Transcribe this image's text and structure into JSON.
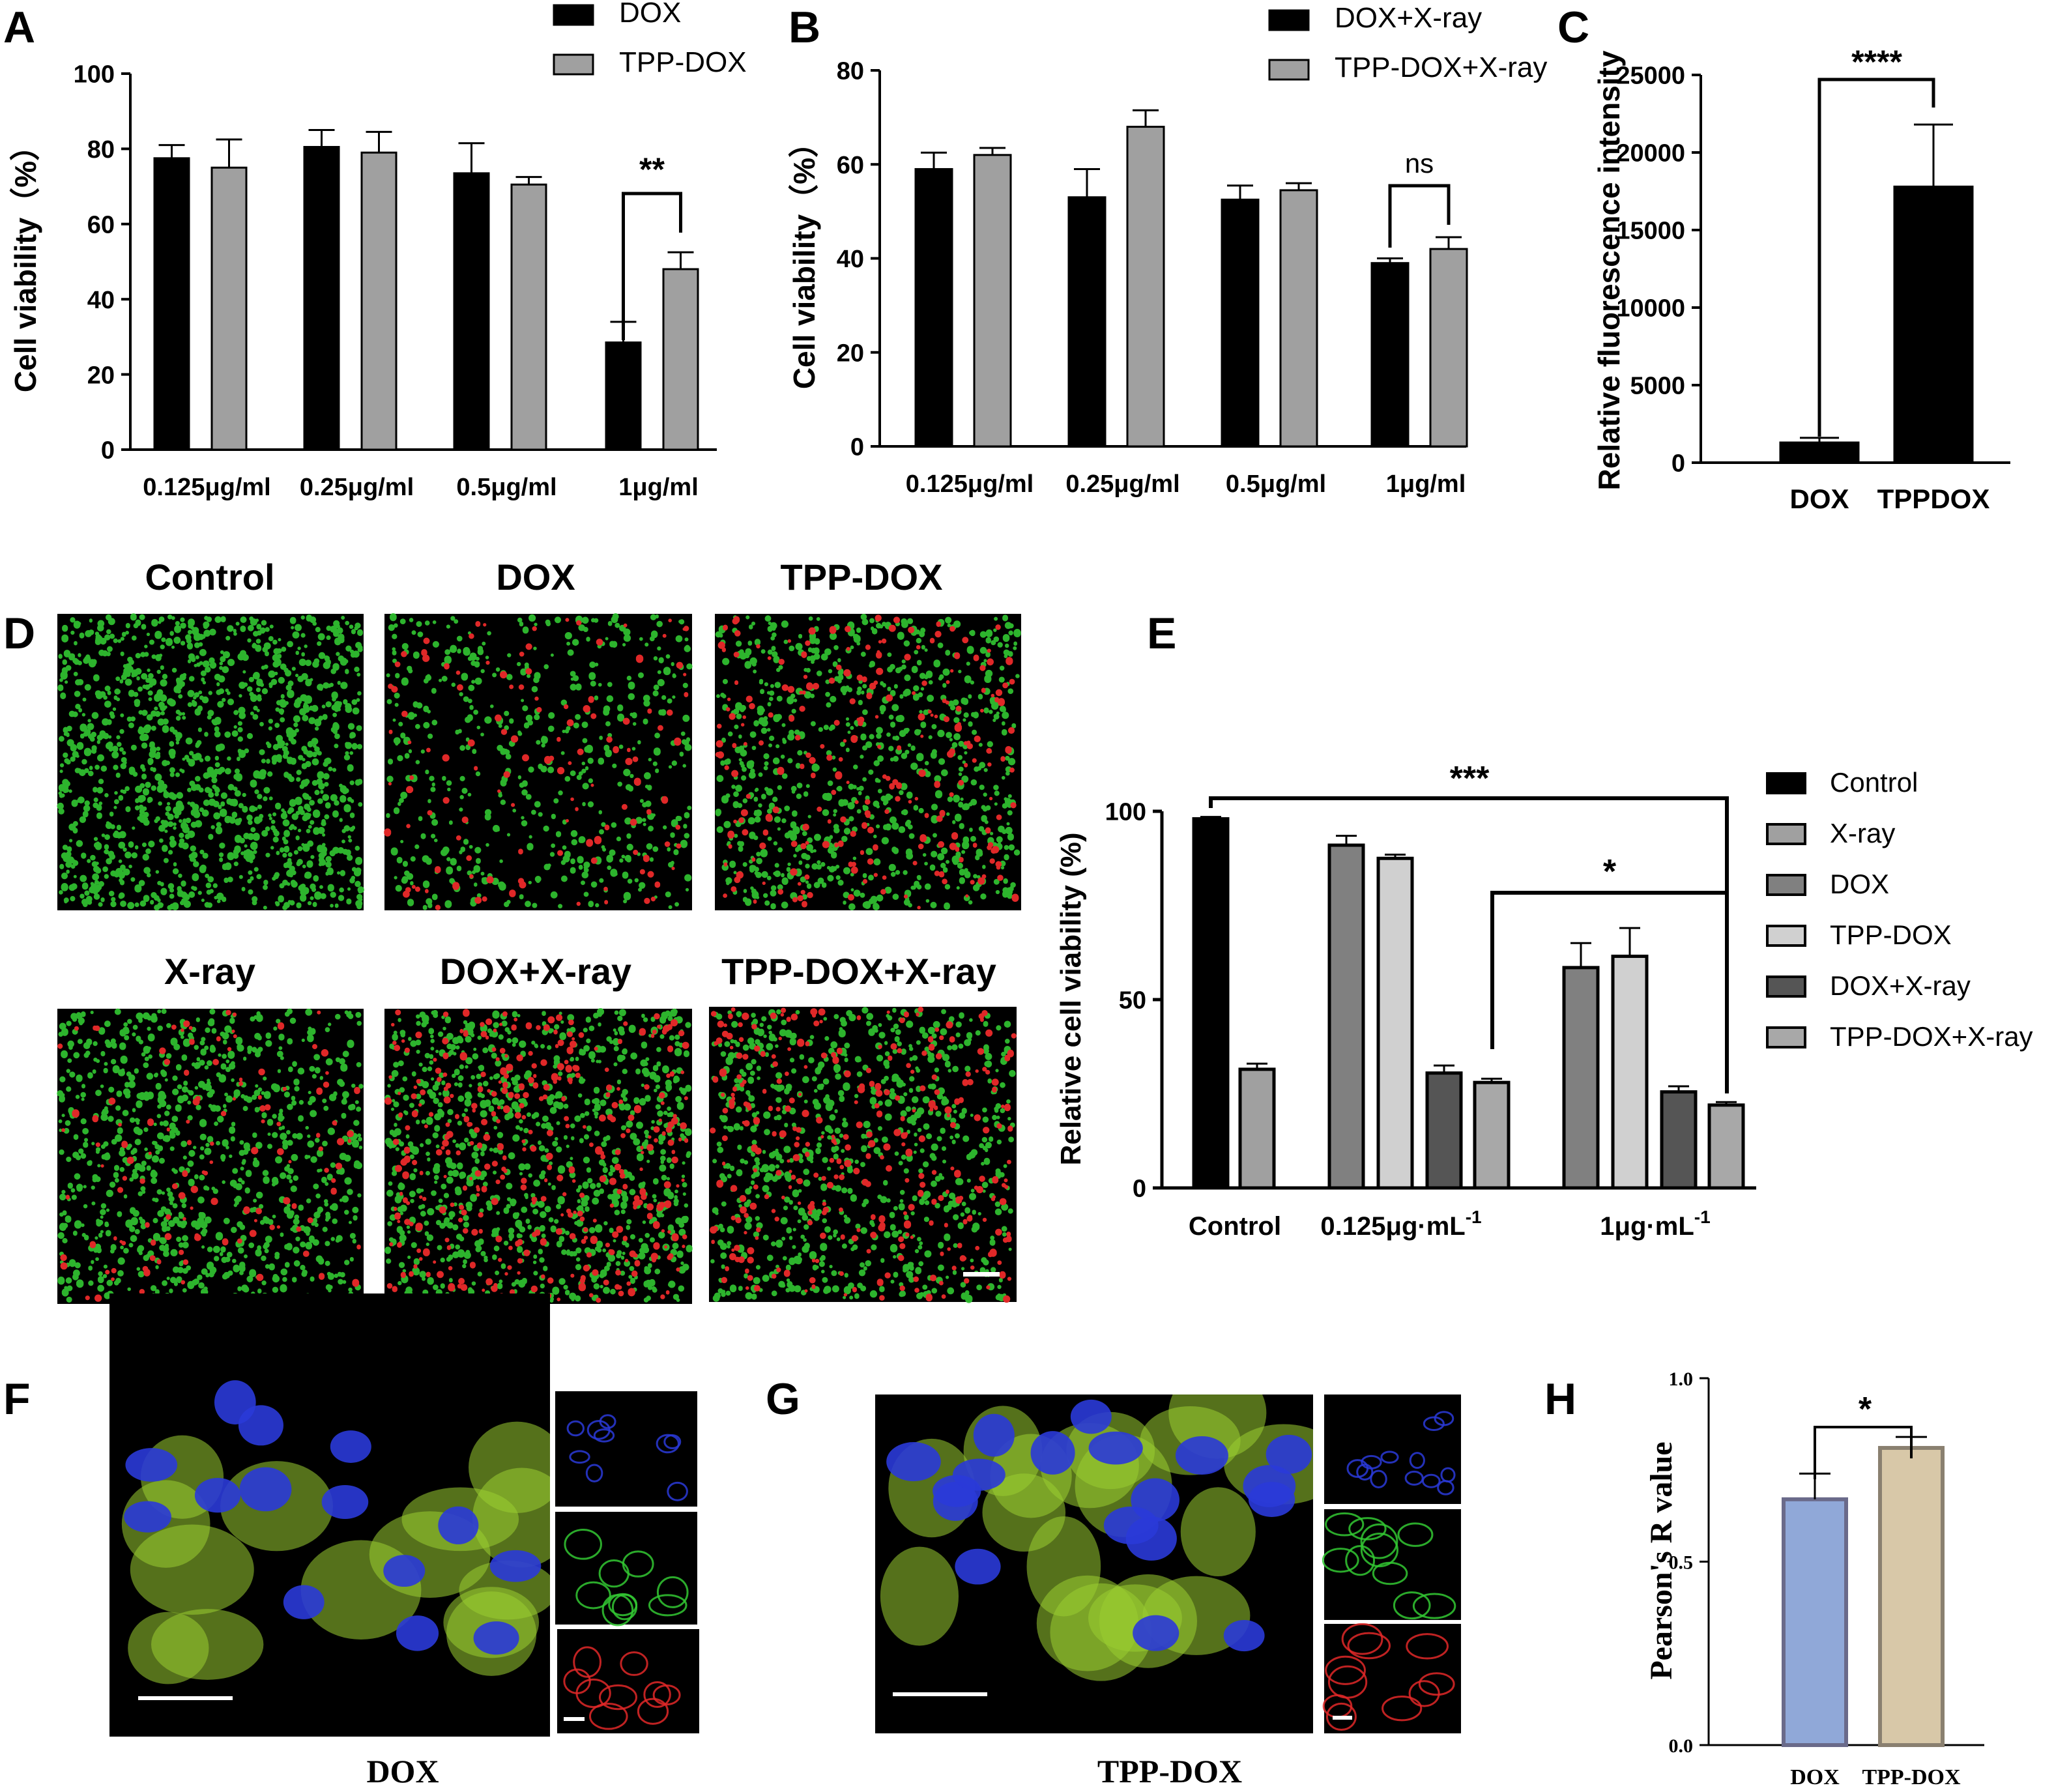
{
  "colors": {
    "black": "#000000",
    "gray": "#a0a0a0",
    "dark_gray": "#555555",
    "mid_gray": "#808080",
    "light_gray": "#d0d0d0",
    "blue": "#90a8d8",
    "tan": "#d8c8a8",
    "live_cell": "#32c832",
    "dead_cell": "#e02828",
    "nucleus": "#2a3ad8",
    "cytoplasm": "#9acd32"
  },
  "chart_data": [
    {
      "panel": "A",
      "type": "bar",
      "categories": [
        "0.125μg/ml",
        "0.25μg/ml",
        "0.5μg/ml",
        "1μg/ml"
      ],
      "series": [
        {
          "name": "DOX",
          "values": [
            77.5,
            80.5,
            73.5,
            28.5
          ],
          "errors": [
            3.5,
            4.5,
            8.0,
            5.5
          ]
        },
        {
          "name": "TPP-DOX",
          "values": [
            75.0,
            79.0,
            70.5,
            48.0
          ],
          "errors": [
            7.5,
            5.5,
            2.0,
            4.5
          ]
        }
      ],
      "ylabel": "Cell viability（%）",
      "ylim": [
        0,
        100
      ],
      "yticks": [
        0,
        20,
        40,
        60,
        80,
        100
      ],
      "significance": [
        {
          "category": 3,
          "label": "**"
        }
      ],
      "legend": "top-right"
    },
    {
      "panel": "B",
      "type": "bar",
      "categories": [
        "0.125μg/ml",
        "0.25μg/ml",
        "0.5μg/ml",
        "1μg/ml"
      ],
      "series": [
        {
          "name": "DOX+X-ray",
          "values": [
            59.0,
            53.0,
            52.5,
            39.0
          ],
          "errors": [
            3.5,
            6.0,
            3.0,
            1.0
          ]
        },
        {
          "name": "TPP-DOX+X-ray",
          "values": [
            62.0,
            68.0,
            54.5,
            42.0
          ],
          "errors": [
            1.5,
            3.5,
            1.5,
            2.5
          ]
        }
      ],
      "ylabel": "Cell viability（%）",
      "ylim": [
        0,
        80
      ],
      "yticks": [
        0,
        20,
        40,
        60,
        80
      ],
      "significance": [
        {
          "category": 3,
          "label": "ns"
        }
      ],
      "legend": "top-right"
    },
    {
      "panel": "C",
      "type": "bar",
      "categories": [
        "DOX",
        "TPPDOX"
      ],
      "values": [
        1300,
        17800
      ],
      "errors": [
        300,
        4000
      ],
      "ylabel": "Relative fluorescence intensity",
      "ylim": [
        0,
        25000
      ],
      "yticks": [
        0,
        5000,
        10000,
        15000,
        20000,
        25000
      ],
      "significance": [
        {
          "label": "****"
        }
      ]
    },
    {
      "panel": "E",
      "type": "bar",
      "groups": [
        {
          "label": "Control",
          "sup": "",
          "series": [
            "Control",
            "X-ray"
          ]
        },
        {
          "label": "0.125μg·mL",
          "sup": "-1",
          "series": [
            "DOX",
            "TPP-DOX",
            "DOX+X-ray",
            "TPP-DOX+X-ray"
          ]
        },
        {
          "label": "1μg·mL",
          "sup": "-1",
          "series": [
            "DOX",
            "TPP-DOX",
            "DOX+X-ray",
            "TPP-DOX+X-ray"
          ]
        }
      ],
      "series": [
        {
          "name": "Control",
          "values": [
            98.0,
            null,
            null
          ],
          "errors": [
            0.5,
            null,
            null
          ]
        },
        {
          "name": "X-ray",
          "values": [
            31.5,
            null,
            null
          ],
          "errors": [
            1.5,
            null,
            null
          ]
        },
        {
          "name": "DOX",
          "values": [
            null,
            91.0,
            58.5
          ],
          "errors": [
            null,
            2.5,
            6.5
          ]
        },
        {
          "name": "TPP-DOX",
          "values": [
            null,
            87.5,
            61.5
          ],
          "errors": [
            null,
            1.0,
            7.5
          ]
        },
        {
          "name": "DOX+X-ray",
          "values": [
            null,
            30.5,
            25.5
          ],
          "errors": [
            null,
            2.0,
            1.5
          ]
        },
        {
          "name": "TPP-DOX+X-ray",
          "values": [
            null,
            28.0,
            22.0
          ],
          "errors": [
            null,
            1.0,
            0.8
          ]
        }
      ],
      "ylabel": "Relative cell viability (%)",
      "ylim": [
        0,
        100
      ],
      "yticks": [
        0,
        50,
        100
      ],
      "significance": [
        {
          "label": "***"
        },
        {
          "label": "*"
        }
      ],
      "legend": "right"
    },
    {
      "panel": "H",
      "type": "bar",
      "categories": [
        "DOX",
        "TPP-DOX"
      ],
      "values": [
        0.67,
        0.81
      ],
      "errors": [
        0.07,
        0.03
      ],
      "ylabel": "Pearson's R value",
      "ylim": [
        0,
        1.0
      ],
      "yticks": [
        "0.0",
        "0.5",
        "1.0"
      ],
      "significance": [
        {
          "label": "*"
        }
      ]
    }
  ],
  "panel_letters": [
    "A",
    "B",
    "C",
    "D",
    "E",
    "F",
    "G",
    "H"
  ],
  "panel_d_titles": [
    "Control",
    "DOX",
    "TPP-DOX",
    "X-ray",
    "DOX+X-ray",
    "TPP-DOX+X-ray"
  ],
  "panel_f_caption": "DOX",
  "panel_g_caption": "TPP-DOX"
}
